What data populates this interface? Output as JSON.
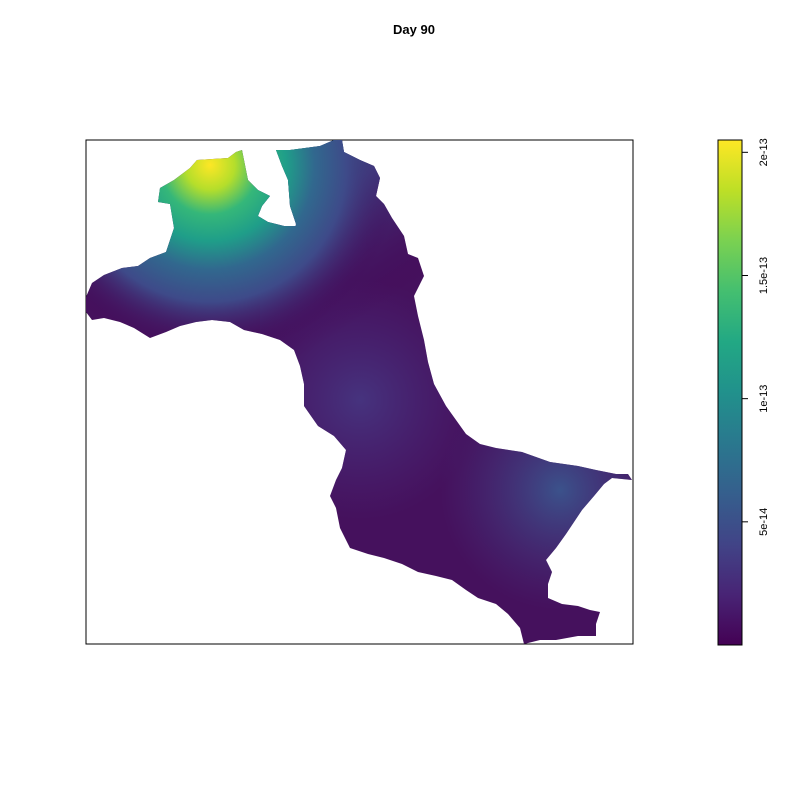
{
  "title": "Day 90",
  "chart_data": {
    "type": "heatmap",
    "title": "Day 90",
    "xlabel": "",
    "ylabel": "",
    "axes_shown": false,
    "colormap": "viridis",
    "color_range": [
      0,
      2.05e-13
    ],
    "colorbar_ticks": [
      {
        "value": 5e-14,
        "label": "5e-14"
      },
      {
        "value": 1e-13,
        "label": "1e-13"
      },
      {
        "value": 1.5e-13,
        "label": "1.5e-13"
      },
      {
        "value": 2e-13,
        "label": "2e-13"
      }
    ],
    "hotspot_value": 2e-13,
    "background_value": 5e-15
  }
}
